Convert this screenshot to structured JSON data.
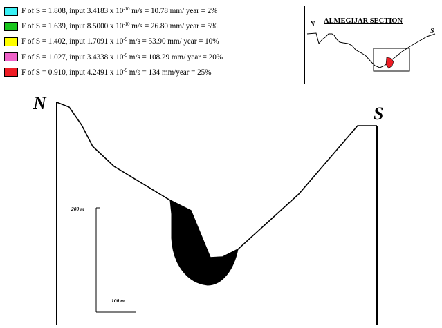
{
  "legend": {
    "items": [
      {
        "color": "#39f0f5",
        "pre": "F of  S = 1.808, input 3.4183 x 10",
        "exp": "-10",
        "post": " m/s = 10.78 mm/ year = 2%"
      },
      {
        "color": "#19c51d",
        "pre": "F of  S = 1.639, input 8.5000 x 10",
        "exp": "-10",
        "post": " m/s = 26.80 mm/ year = 5%"
      },
      {
        "color": "#ffff00",
        "pre": "F of  S = 1.402, input 1.7091 x 10",
        "exp": "-9",
        "post": " m/s = 53.90 mm/ year = 10%"
      },
      {
        "color": "#ee62c8",
        "pre": "F of  S = 1.027, input 3.4338 x 10",
        "exp": "-9",
        "post": " m/s = 108.29 mm/ year = 20%"
      },
      {
        "color": "#ee1c24",
        "pre": "F of  S = 0.910, input 4.2491 x 10",
        "exp": "-9",
        "post": " m/s = 134 mm/year = 25%"
      }
    ]
  },
  "inset": {
    "title": "ALMEGIJAR SECTION",
    "north": "N",
    "south": "S"
  },
  "section": {
    "north": "N",
    "south": "S",
    "scale_vertical": "200 m",
    "scale_horizontal": "100 m"
  }
}
